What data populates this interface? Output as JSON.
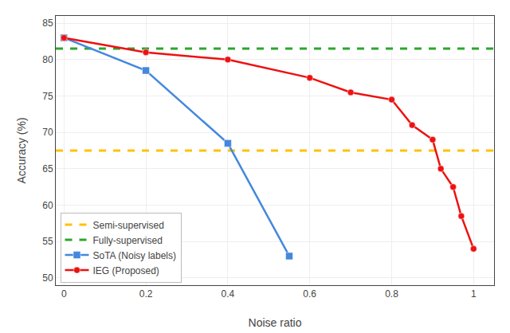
{
  "chart_data": {
    "type": "line",
    "xlabel": "Noise ratio",
    "ylabel": "Accuracy (%)",
    "xlim": [
      -0.02,
      1.05
    ],
    "ylim": [
      49,
      86
    ],
    "xticks": [
      0.0,
      0.2,
      0.4,
      0.6,
      0.8,
      1.0
    ],
    "yticks": [
      50,
      55,
      60,
      65,
      70,
      75,
      80,
      85
    ],
    "grid": true,
    "legend": "lower left",
    "series": [
      {
        "name": "Semi-supervised",
        "type": "hline",
        "color": "#FFC107",
        "line_style": "dashed",
        "values": [
          67.5
        ]
      },
      {
        "name": "Fully-supervised",
        "type": "hline",
        "color": "#2EA52E",
        "line_style": "dashed",
        "values": [
          81.5
        ]
      },
      {
        "name": "SoTA (Noisy labels)",
        "type": "line",
        "color": "#4488DD",
        "marker": "square",
        "line_style": "solid",
        "x": [
          0.0,
          0.2,
          0.4,
          0.55
        ],
        "values": [
          83.0,
          78.5,
          68.5,
          53.0
        ]
      },
      {
        "name": "IEG (Proposed)",
        "type": "line",
        "color": "#EE1111",
        "marker": "circle",
        "line_style": "solid",
        "x": [
          0.0,
          0.2,
          0.4,
          0.6,
          0.7,
          0.8,
          0.85,
          0.9,
          0.92,
          0.95,
          0.97,
          1.0
        ],
        "values": [
          83.0,
          81.0,
          80.0,
          77.5,
          75.5,
          74.5,
          71.0,
          69.0,
          65.0,
          62.5,
          58.5,
          54.0
        ]
      }
    ]
  }
}
